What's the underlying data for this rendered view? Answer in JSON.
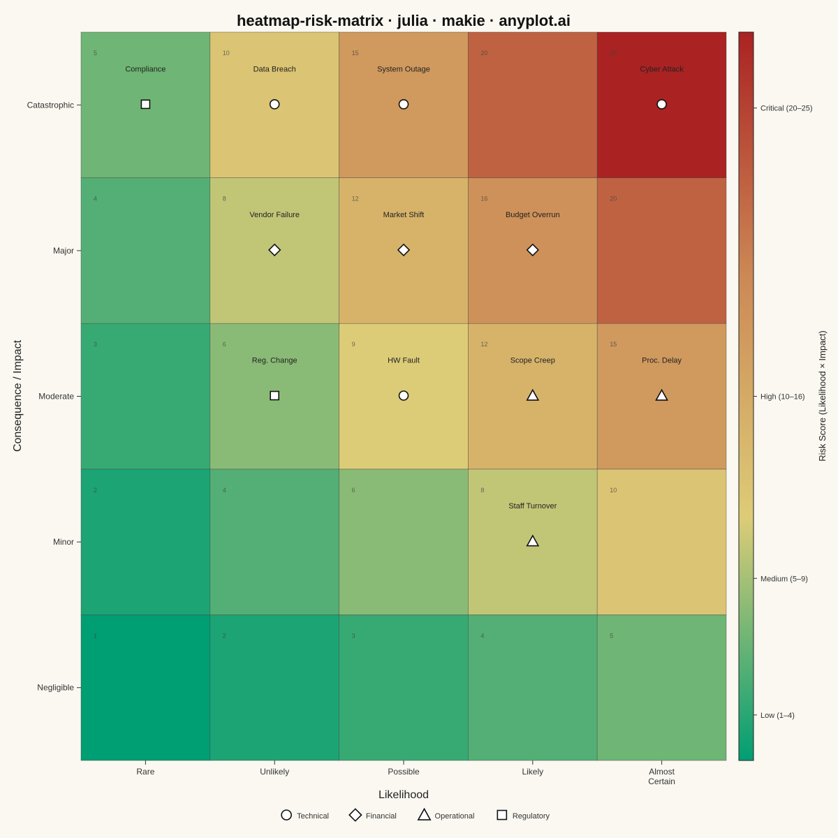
{
  "chart_data": {
    "type": "heatmap",
    "title": "heatmap-risk-matrix · julia · makie · anyplot.ai",
    "xlabel": "Likelihood",
    "ylabel": "Consequence / Impact",
    "x_categories": [
      "Rare",
      "Unlikely",
      "Possible",
      "Likely",
      "Almost Certain"
    ],
    "y_categories": [
      "Negligible",
      "Minor",
      "Moderate",
      "Major",
      "Catastrophic"
    ],
    "scores": [
      [
        1,
        2,
        3,
        4,
        5
      ],
      [
        2,
        4,
        6,
        8,
        10
      ],
      [
        3,
        6,
        9,
        12,
        15
      ],
      [
        4,
        8,
        12,
        16,
        20
      ],
      [
        5,
        10,
        15,
        20,
        25
      ]
    ],
    "colorbar": {
      "label": "Risk Score  (Likelihood × Impact)",
      "range": [
        1,
        25
      ],
      "ticks": [
        {
          "value": 2.5,
          "label": "Low (1–4)"
        },
        {
          "value": 7,
          "label": "Medium (5–9)"
        },
        {
          "value": 13,
          "label": "High (10–16)"
        },
        {
          "value": 22.5,
          "label": "Critical (20–25)"
        }
      ],
      "colors": [
        "#009E73",
        "#DDCC77",
        "#CC8855",
        "#AA2222"
      ]
    },
    "risks": [
      {
        "name": "Compliance",
        "likelihood": 1,
        "impact": 5,
        "category": "Regulatory"
      },
      {
        "name": "Data Breach",
        "likelihood": 2,
        "impact": 5,
        "category": "Technical"
      },
      {
        "name": "System Outage",
        "likelihood": 3,
        "impact": 5,
        "category": "Technical"
      },
      {
        "name": "Cyber Attack",
        "likelihood": 5,
        "impact": 5,
        "category": "Technical"
      },
      {
        "name": "Vendor Failure",
        "likelihood": 2,
        "impact": 4,
        "category": "Financial"
      },
      {
        "name": "Market Shift",
        "likelihood": 3,
        "impact": 4,
        "category": "Financial"
      },
      {
        "name": "Budget Overrun",
        "likelihood": 4,
        "impact": 4,
        "category": "Financial"
      },
      {
        "name": "Reg. Change",
        "likelihood": 2,
        "impact": 3,
        "category": "Regulatory"
      },
      {
        "name": "HW Fault",
        "likelihood": 3,
        "impact": 3,
        "category": "Technical"
      },
      {
        "name": "Scope Creep",
        "likelihood": 4,
        "impact": 3,
        "category": "Operational"
      },
      {
        "name": "Proc. Delay",
        "likelihood": 5,
        "impact": 3,
        "category": "Operational"
      },
      {
        "name": "Staff Turnover",
        "likelihood": 4,
        "impact": 2,
        "category": "Operational"
      }
    ],
    "legend": {
      "placement": "bottom",
      "entries": [
        {
          "label": "Technical",
          "marker": "circle"
        },
        {
          "label": "Financial",
          "marker": "diamond"
        },
        {
          "label": "Operational",
          "marker": "triangle"
        },
        {
          "label": "Regulatory",
          "marker": "square"
        }
      ]
    }
  }
}
